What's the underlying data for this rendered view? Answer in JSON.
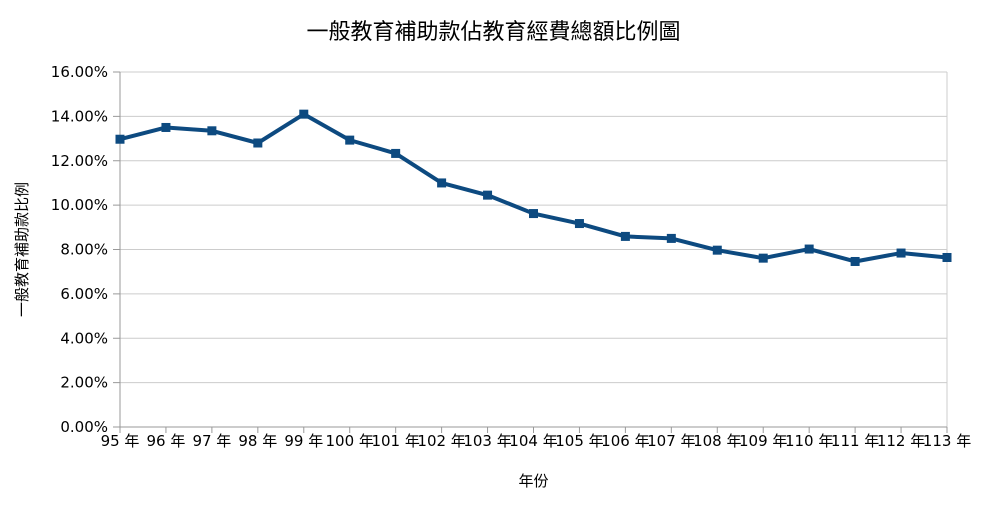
{
  "title": "一般教育補助款佔教育經費總額比例圖",
  "chart_data": {
    "type": "line",
    "title": "一般教育補助款佔教育經費總額比例圖",
    "xlabel": "年份",
    "ylabel": "一般教育補助款比例",
    "categories": [
      "95 年",
      "96 年",
      "97 年",
      "98 年",
      "99 年",
      "100 年",
      "101 年",
      "102 年",
      "103 年",
      "104 年",
      "105 年",
      "106 年",
      "107 年",
      "108 年",
      "109 年",
      "110 年",
      "111 年",
      "112 年",
      "113 年"
    ],
    "values": [
      12.97,
      13.5,
      13.35,
      12.8,
      14.1,
      12.93,
      12.33,
      11.0,
      10.45,
      9.62,
      9.17,
      8.59,
      8.5,
      7.97,
      7.61,
      8.02,
      7.46,
      7.84,
      7.64
    ],
    "ylim": [
      0,
      16
    ],
    "y_tick_step": 2,
    "y_tick_labels": [
      "0.00%",
      "2.00%",
      "4.00%",
      "6.00%",
      "8.00%",
      "10.00%",
      "12.00%",
      "14.00%",
      "16.00%"
    ],
    "grid": true,
    "legend": "none",
    "marker": "square"
  },
  "colors": {
    "series": "#0d4a80",
    "gridline": "#cccccc",
    "axis": "#999999",
    "text": "#000000",
    "background": "#ffffff"
  }
}
